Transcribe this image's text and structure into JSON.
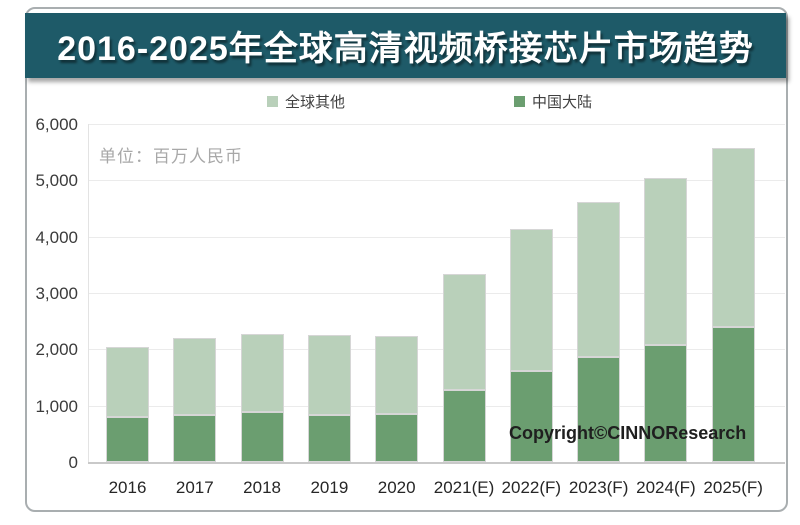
{
  "card": {
    "title": "2016-2025年全球高清视频桥接芯片市场趋势",
    "unit_label": "单位：百万人民币",
    "copyright": "Copyright©CINNOResearch"
  },
  "legend": {
    "others": {
      "label": "全球其他",
      "color": "#b9d0ba"
    },
    "china": {
      "label": "中国大陆",
      "color": "#6b9e70"
    }
  },
  "colors": {
    "title_bar_bg": "#1e5a68",
    "title_text": "#ffffff",
    "bar_others": "#b9d0ba",
    "bar_china": "#6b9e70",
    "bar_border": "#d6d6d6",
    "gridline": "#ebebeb",
    "card_border": "#a9aeb0"
  },
  "chart_data": {
    "type": "bar",
    "stacked": true,
    "title": "2016-2025年全球高清视频桥接芯片市场趋势",
    "unit": "百万人民币",
    "xlabel": "",
    "ylabel": "百万人民币",
    "ylim": [
      0,
      6000
    ],
    "ytick_step": 1000,
    "yticks": [
      "0",
      "1,000",
      "2,000",
      "3,000",
      "4,000",
      "5,000",
      "6,000"
    ],
    "grid": true,
    "legend_position": "top",
    "categories": [
      "2016",
      "2017",
      "2018",
      "2019",
      "2020",
      "2021(E)",
      "2022(F)",
      "2023(F)",
      "2024(F)",
      "2025(F)"
    ],
    "series": [
      {
        "name": "中国大陆",
        "color": "#6b9e70",
        "values": [
          790,
          830,
          880,
          840,
          860,
          1280,
          1610,
          1860,
          2080,
          2390
        ]
      },
      {
        "name": "全球其他",
        "color": "#b9d0ba",
        "values": [
          1260,
          1370,
          1390,
          1410,
          1380,
          2060,
          2520,
          2760,
          2960,
          3190
        ]
      }
    ],
    "totals": [
      2050,
      2200,
      2270,
      2250,
      2240,
      3340,
      4130,
      4620,
      5040,
      5580
    ]
  }
}
